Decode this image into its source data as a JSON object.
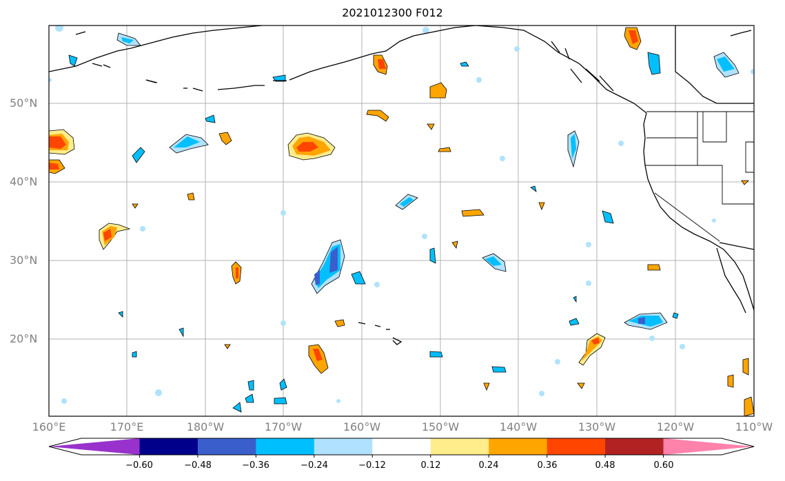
{
  "title": "2021012300 F012",
  "latitude_labels": [
    "50°N",
    "40°N",
    "30°N",
    "20°N"
  ],
  "longitude_labels": [
    "160°E",
    "170°E",
    "180°W",
    "170°W",
    "160°W",
    "150°W",
    "140°W",
    "130°W",
    "120°W",
    "110°W"
  ],
  "colorbar": {
    "tick_labels": [
      "−0.60",
      "−0.48",
      "−0.36",
      "−0.24",
      "−0.12",
      "0.12",
      "0.24",
      "0.36",
      "0.48",
      "0.60"
    ],
    "levels": [
      -0.6,
      -0.48,
      -0.36,
      -0.24,
      -0.12,
      0.12,
      0.24,
      0.36,
      0.48,
      0.6
    ],
    "colors": [
      "#9932cc",
      "#00008b",
      "#3a5fcd",
      "#00bfff",
      "#b0e2ff",
      "#ffffff",
      "#ffec8b",
      "#ffa500",
      "#ff4500",
      "#b22222",
      "#ff82ab"
    ],
    "extend": "both"
  }
}
